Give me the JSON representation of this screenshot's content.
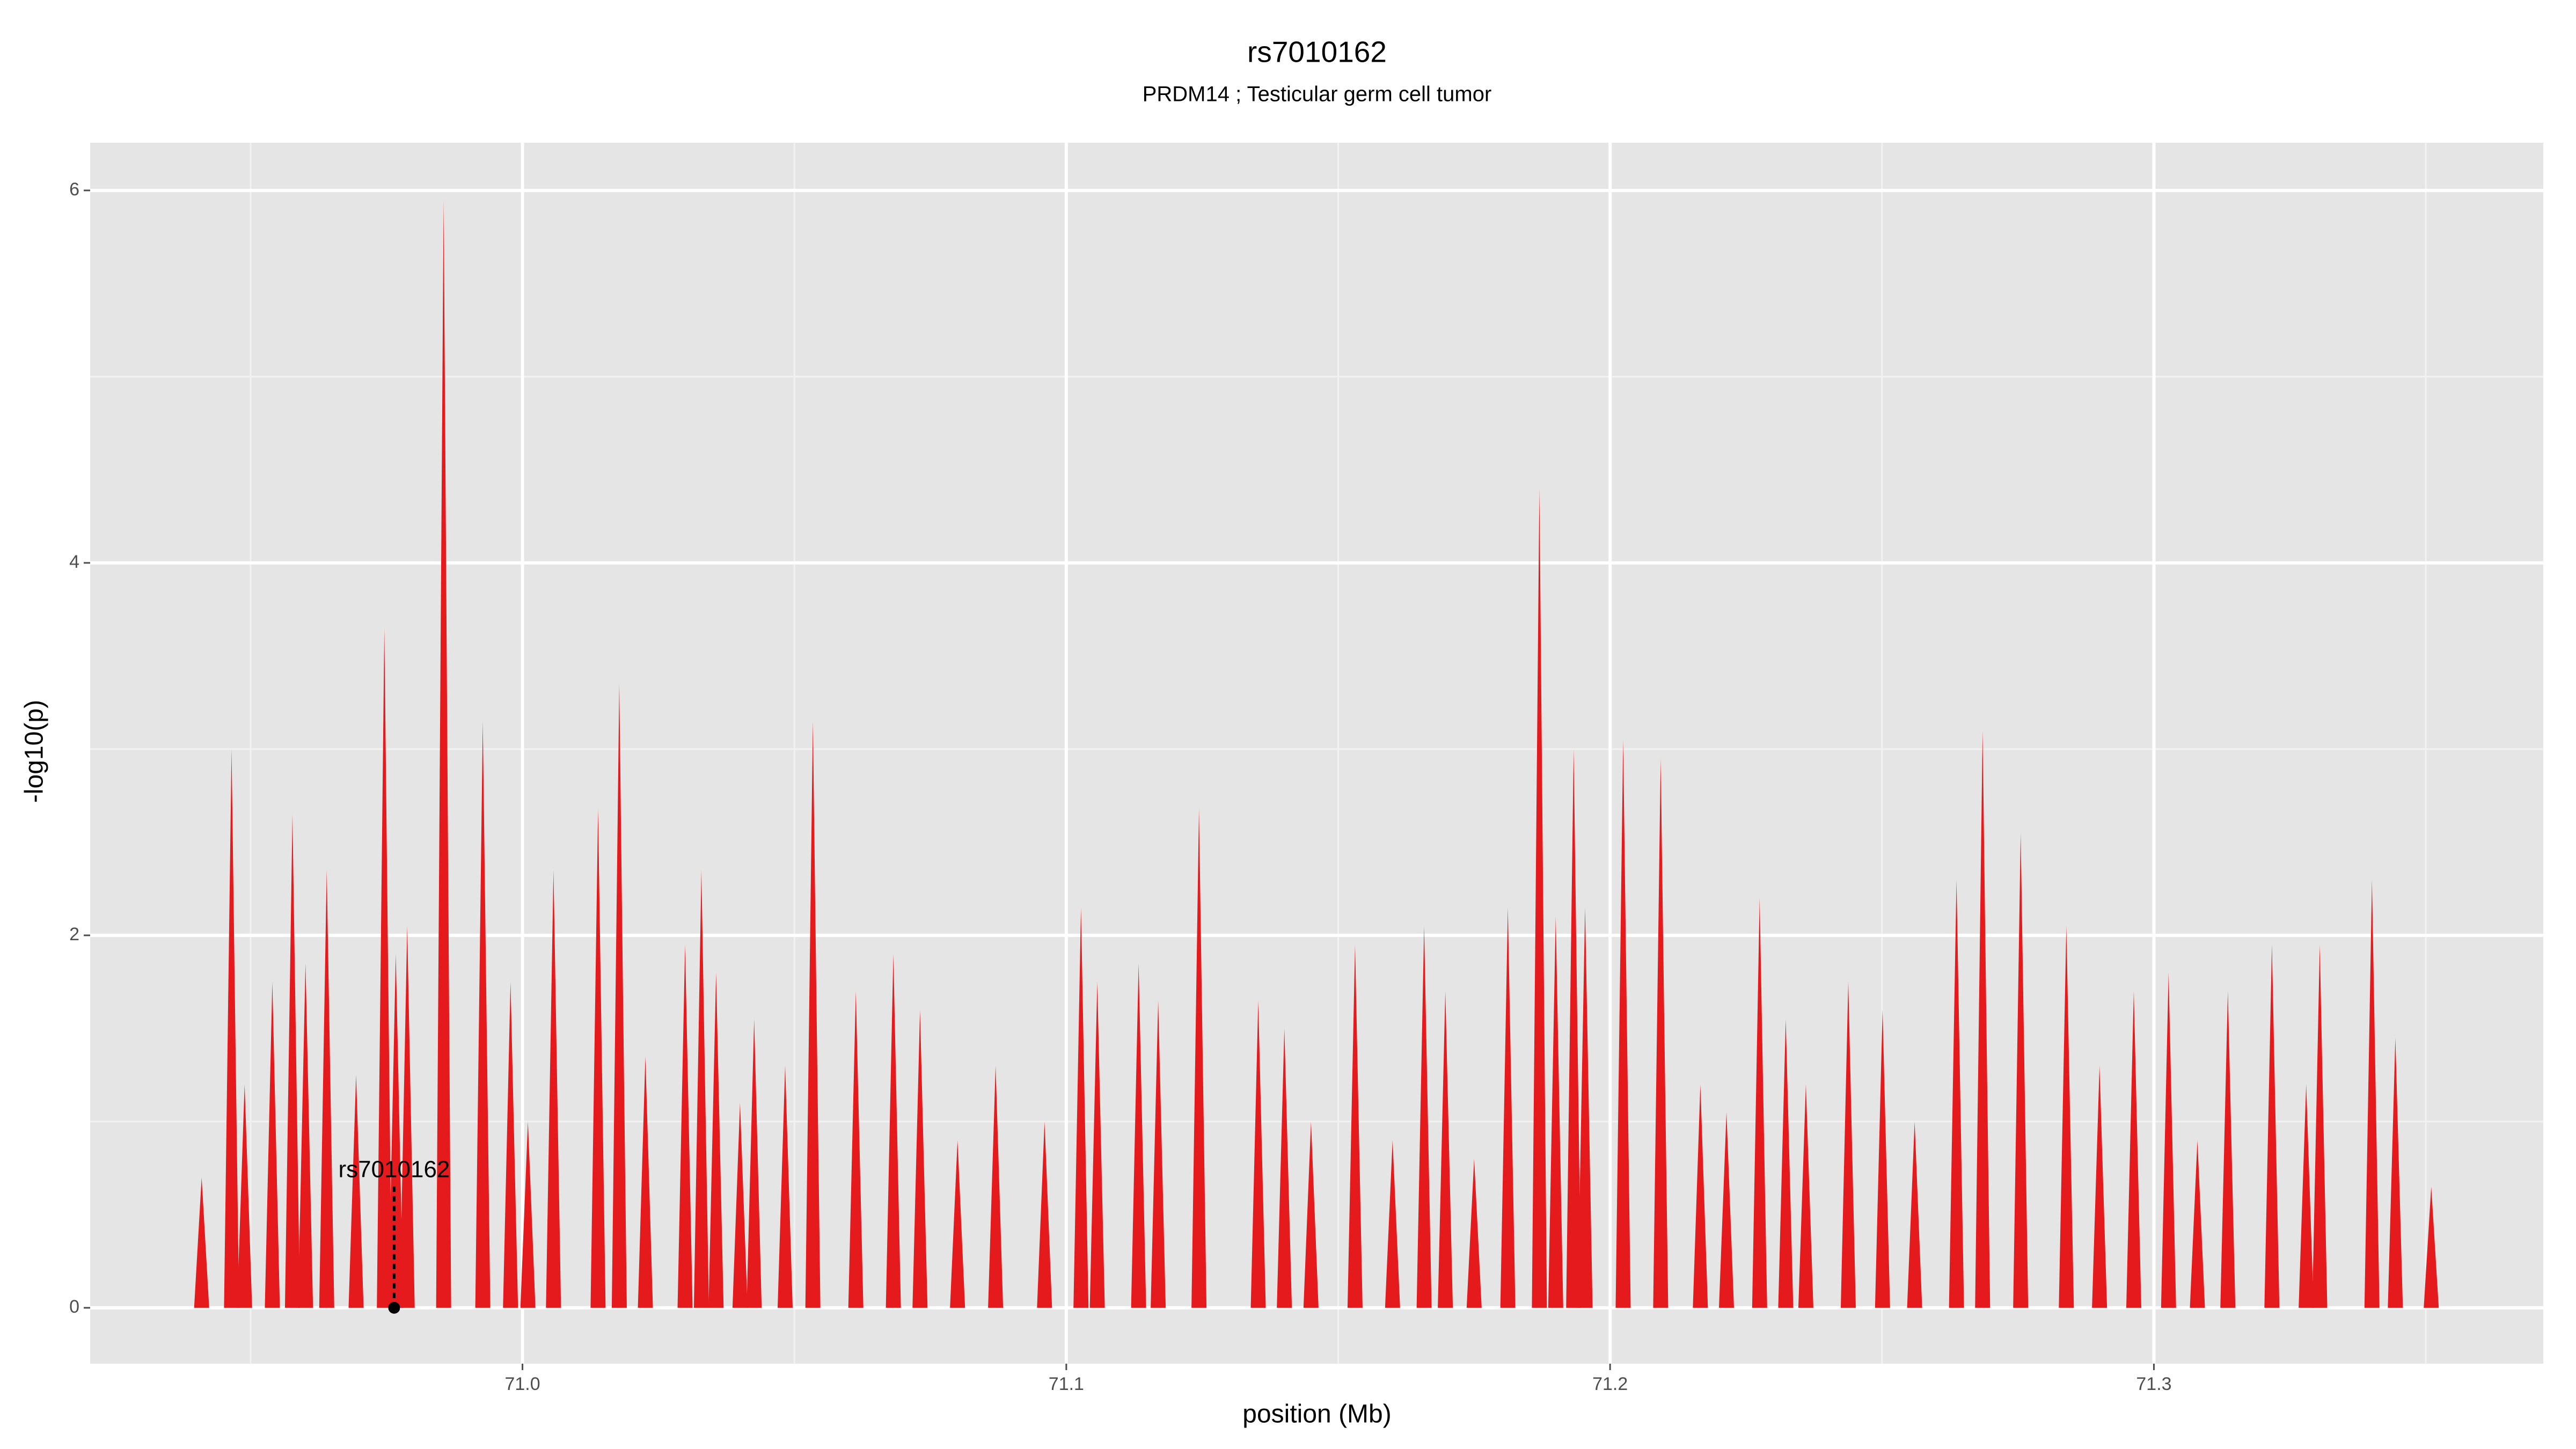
{
  "chart_data": {
    "type": "spike",
    "title": "rs7010162",
    "subtitle": "PRDM14 ; Testicular germ cell tumor",
    "x_label": "position (Mb)",
    "y_label": "-log10(p)",
    "color": "#e41a1c",
    "xlim": [
      70.9205,
      71.3716
    ],
    "ylim": [
      -0.3,
      6.256
    ],
    "xticks": [
      {
        "value": 71,
        "label": "71.0"
      },
      71.1,
      71.2,
      71.3
    ],
    "yticks": [
      0,
      2,
      4,
      6
    ],
    "x_minor_ticks": [
      70.95,
      71.05,
      71.15,
      71.25,
      71.35
    ],
    "y_minor_ticks": [
      1,
      3,
      5
    ],
    "grid": true,
    "x": [
      70.941,
      70.9465,
      70.9489,
      70.954,
      70.9577,
      70.9601,
      70.964,
      70.9694,
      70.9746,
      70.9767,
      70.9788,
      70.9855,
      70.9927,
      70.9978,
      71.001,
      71.0057,
      71.0139,
      71.0178,
      71.0226,
      71.0299,
      71.0329,
      71.0356,
      71.04,
      71.0426,
      71.0483,
      71.0534,
      71.0613,
      71.0682,
      71.0731,
      71.08,
      71.087,
      71.096,
      71.1027,
      71.1057,
      71.1133,
      71.1169,
      71.1244,
      71.1353,
      71.1401,
      71.145,
      71.1531,
      71.16,
      71.1658,
      71.1697,
      71.175,
      71.1812,
      71.187,
      71.19,
      71.1933,
      71.1954,
      71.2024,
      71.2093,
      71.2166,
      71.2214,
      71.2275,
      71.2323,
      71.236,
      71.2438,
      71.2501,
      71.256,
      71.2637,
      71.2685,
      71.2755,
      71.2839,
      71.29,
      71.2963,
      71.3027,
      71.308,
      71.3136,
      71.3217,
      71.328,
      71.3305,
      71.3401,
      71.3444,
      71.351
    ],
    "values": [
      0.7,
      3.0,
      1.2,
      1.75,
      2.65,
      1.85,
      2.35,
      1.25,
      3.65,
      1.9,
      2.05,
      5.95,
      3.15,
      1.75,
      1.0,
      2.35,
      2.68,
      3.35,
      1.35,
      1.95,
      2.35,
      1.8,
      1.1,
      1.55,
      1.3,
      3.15,
      1.7,
      1.9,
      1.6,
      0.9,
      1.3,
      1.0,
      2.15,
      1.75,
      1.85,
      1.65,
      2.68,
      1.65,
      1.5,
      1.0,
      1.95,
      0.9,
      2.05,
      1.7,
      0.8,
      2.15,
      4.4,
      2.1,
      3.0,
      2.15,
      3.05,
      2.95,
      1.2,
      1.05,
      2.2,
      1.55,
      1.2,
      1.75,
      1.6,
      1.0,
      2.3,
      3.1,
      2.55,
      2.05,
      1.3,
      1.7,
      1.8,
      0.9,
      1.7,
      1.95,
      1.2,
      1.95,
      2.3,
      1.45,
      0.65
    ],
    "annotations": [
      {
        "text": "rs7010162",
        "x": 70.9764,
        "y": 0
      }
    ]
  }
}
